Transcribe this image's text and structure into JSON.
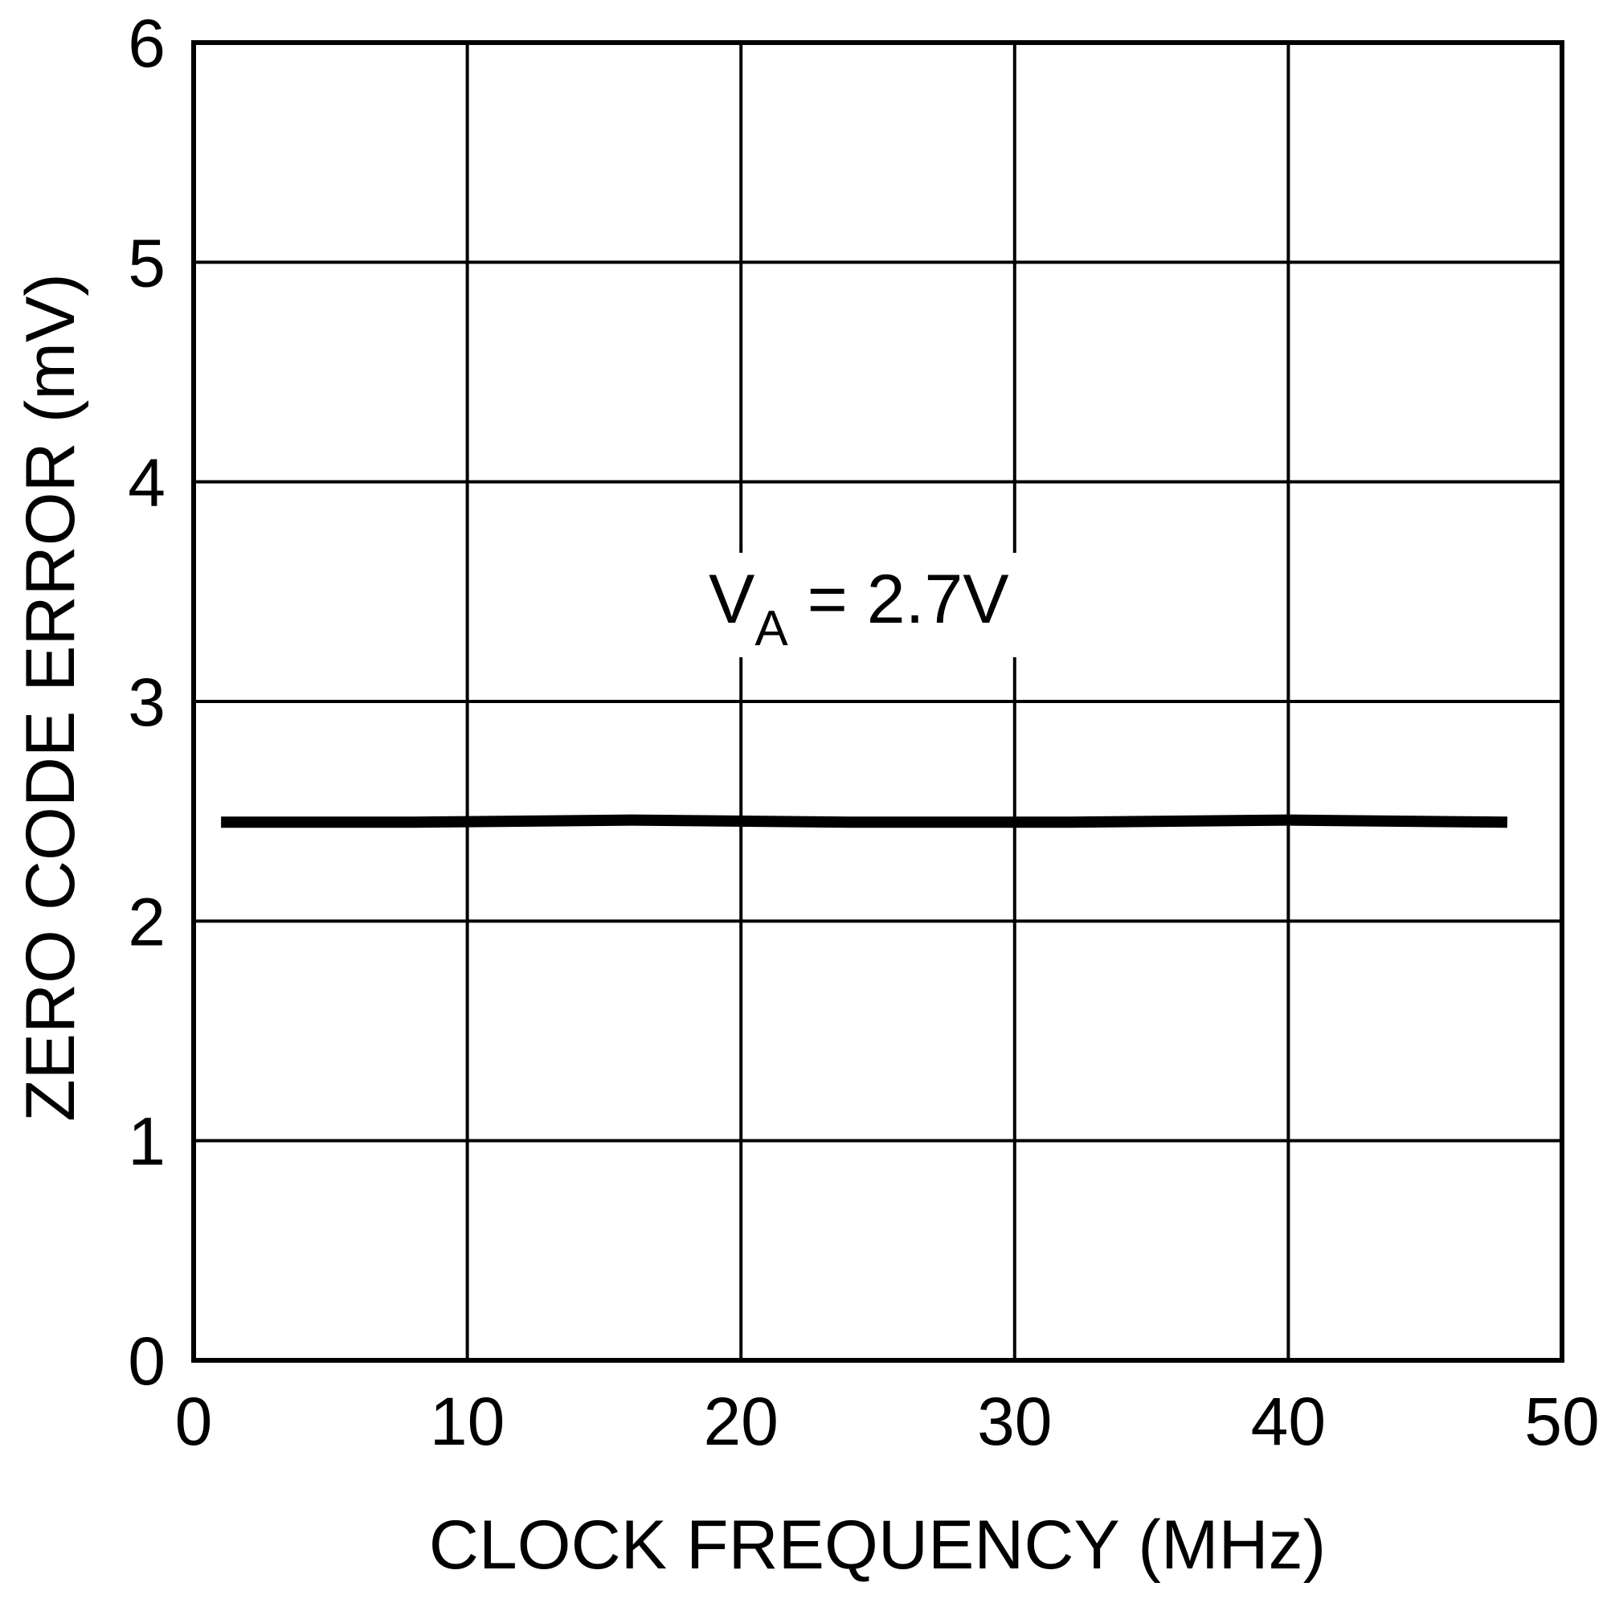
{
  "chart_data": {
    "type": "line",
    "title": "",
    "xlabel": "CLOCK FREQUENCY (MHz)",
    "ylabel": "ZERO CODE ERROR (mV)",
    "xlim": [
      0,
      50
    ],
    "ylim": [
      0,
      6
    ],
    "x_ticks": [
      "0",
      "10",
      "20",
      "30",
      "40",
      "50"
    ],
    "y_ticks": [
      "0",
      "1",
      "2",
      "3",
      "4",
      "5",
      "6"
    ],
    "grid": true,
    "annotation": {
      "main": "V",
      "subscript": "A",
      "rest": " = 2.7V"
    },
    "series": [
      {
        "name": "",
        "x": [
          1,
          8,
          16,
          24,
          32,
          40,
          48
        ],
        "y": [
          2.45,
          2.45,
          2.46,
          2.45,
          2.45,
          2.46,
          2.45
        ]
      }
    ]
  }
}
